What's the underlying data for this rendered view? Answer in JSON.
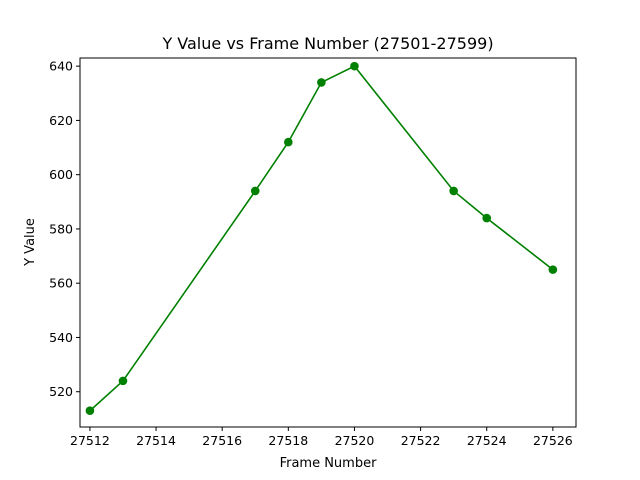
{
  "chart_data": {
    "type": "line",
    "title": "Y Value vs Frame Number (27501-27599)",
    "xlabel": "Frame Number",
    "ylabel": "Y Value",
    "xlim": [
      27511.7,
      27526.7
    ],
    "ylim": [
      507,
      643
    ],
    "xticks": [
      27512,
      27514,
      27516,
      27518,
      27520,
      27522,
      27524,
      27526
    ],
    "yticks": [
      520,
      540,
      560,
      580,
      600,
      620,
      640
    ],
    "grid": false,
    "legend": "none",
    "series": [
      {
        "color": "#008000",
        "marker": "circle",
        "x": [
          27512,
          27513,
          27517,
          27518,
          27519,
          27520,
          27523,
          27524,
          27526
        ],
        "y": [
          513,
          524,
          594,
          612,
          634,
          640,
          594,
          584,
          565
        ]
      }
    ]
  }
}
